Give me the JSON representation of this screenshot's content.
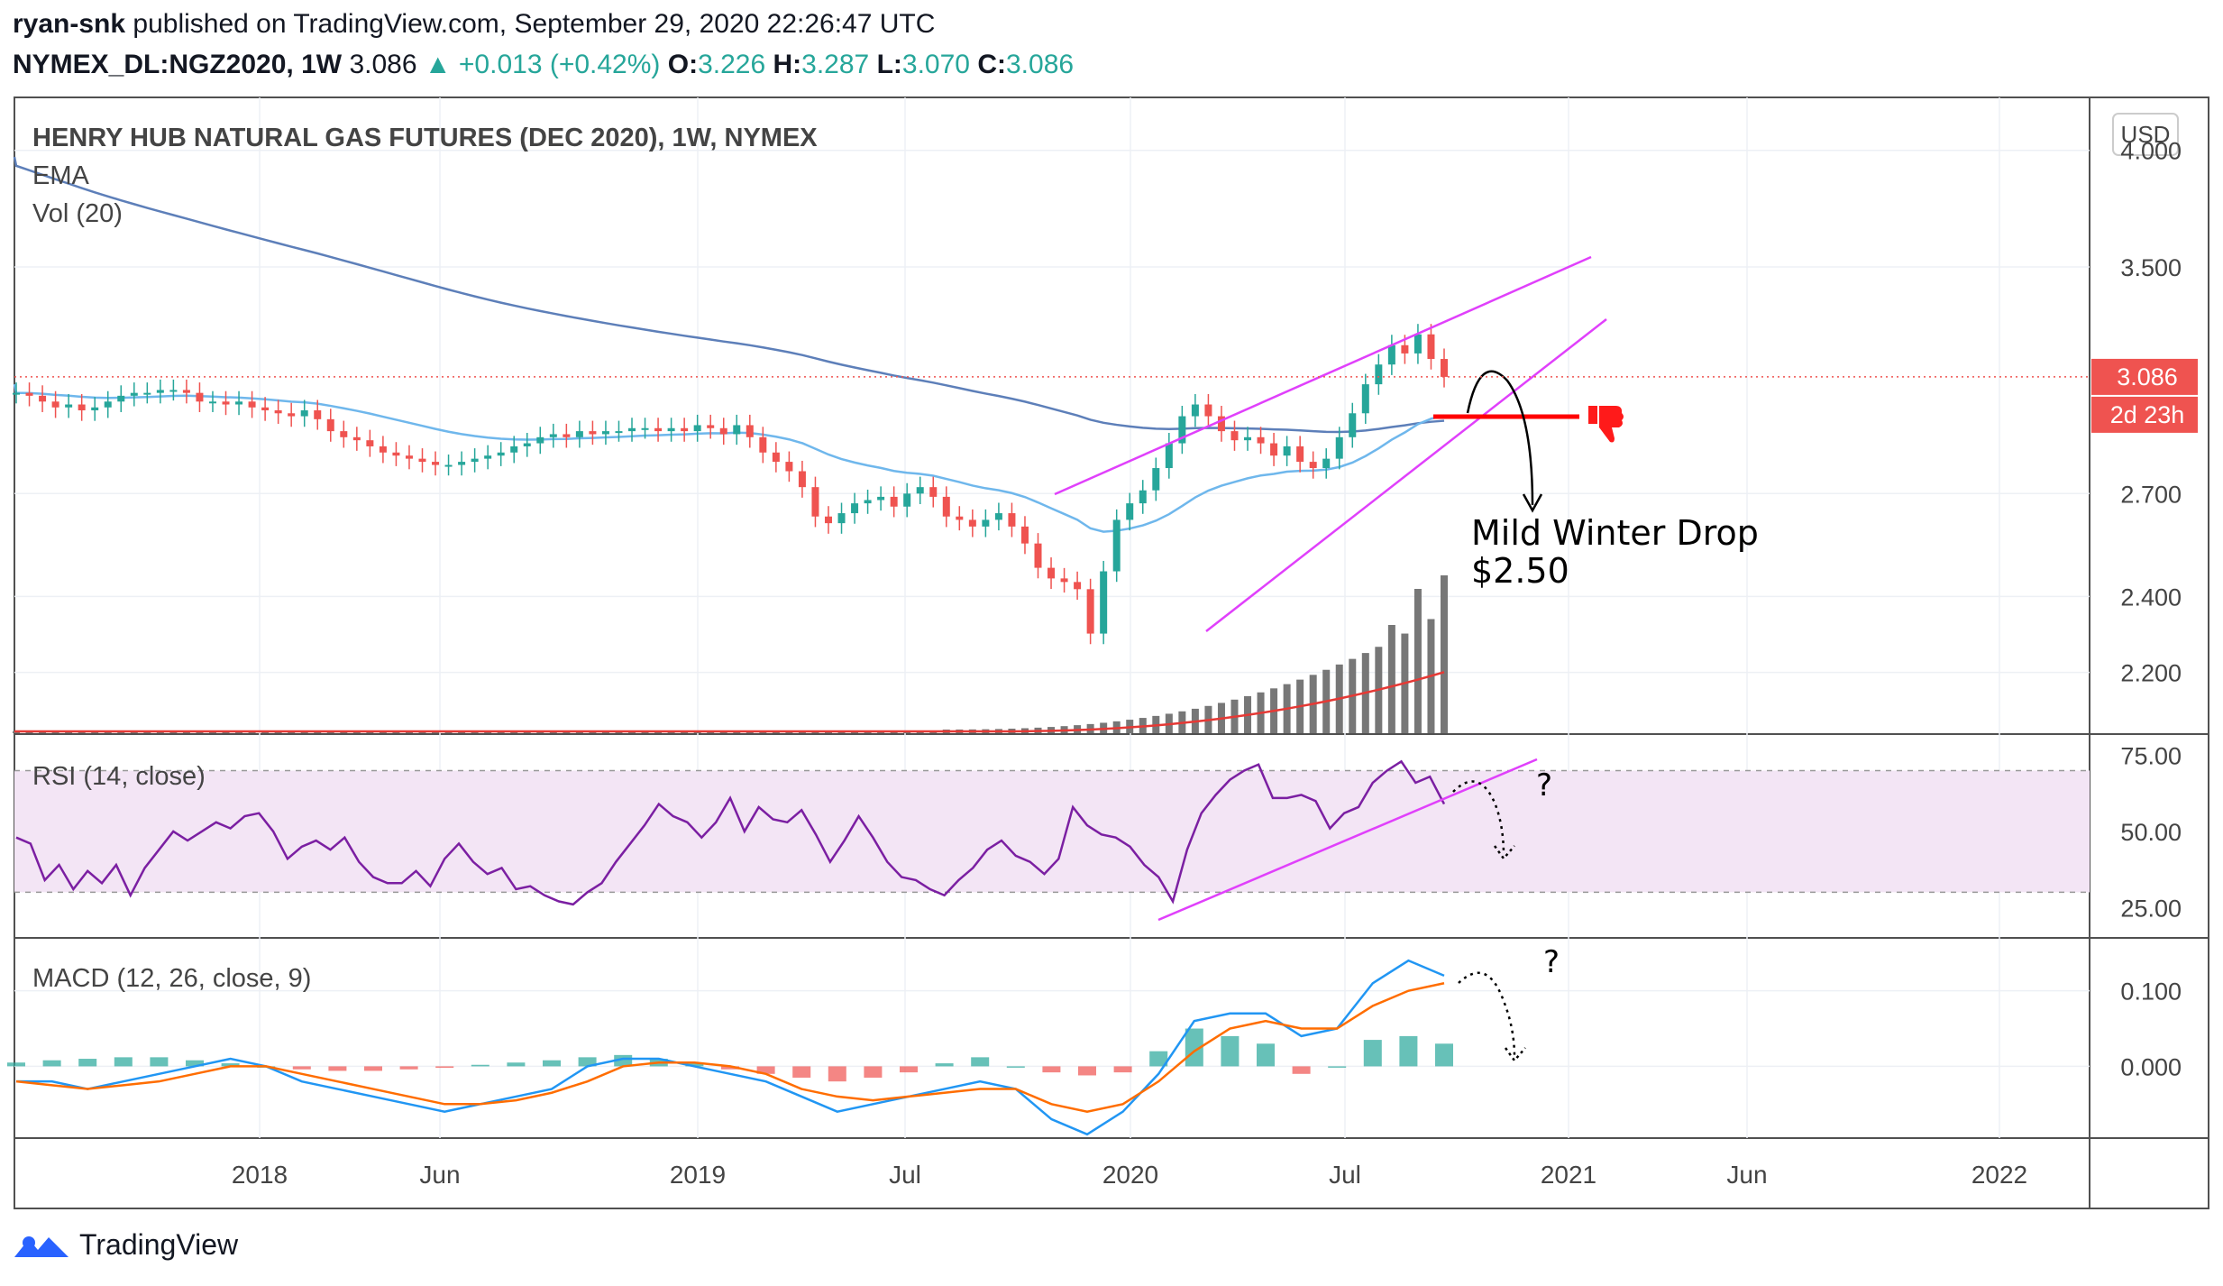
{
  "publisher": {
    "user": "ryan-snk",
    "text": "published on TradingView.com, September 29, 2020 22:26:47 UTC"
  },
  "ticker": {
    "symbol": "NYMEX_DL:NGZ2020, 1W",
    "last": "3.086",
    "change": "+0.013 (+0.42%)",
    "O": "3.226",
    "H": "3.287",
    "L": "3.070",
    "C": "3.086",
    "o_label": "O:",
    "h_label": "H:",
    "l_label": "L:",
    "c_label": "C:"
  },
  "footer": {
    "brand": "TradingView"
  },
  "colors": {
    "up": "#26a69a",
    "down": "#ef5350",
    "ema": "#5d7fb9",
    "ma": "#6fb7ec",
    "channel": "#e040fb",
    "rsi": "#7b1fa2",
    "rsi_band": "#f3e5f5",
    "macd": "#2196f3",
    "signal": "#ff6d00",
    "volume": "#777777",
    "vol_ma": "#e53935",
    "red_line": "#ff0000"
  },
  "chart_data": [
    {
      "type": "candlestick",
      "title": "HENRY HUB NATURAL GAS FUTURES (DEC 2020), 1W, NYMEX",
      "indicators": [
        "EMA",
        "Vol (20)"
      ],
      "currency": "USD",
      "y_ticks": [
        "4.000",
        "3.500",
        "2.700",
        "2.400",
        "2.200"
      ],
      "y_tick_values": [
        4.0,
        3.5,
        2.7,
        2.4,
        2.2
      ],
      "x_ticks": [
        "2018",
        "Jun",
        "2019",
        "Jul",
        "2020",
        "Jul",
        "2021",
        "Jun",
        "2022"
      ],
      "last_price_label": "3.086",
      "countdown_label": "2d 23h",
      "last_price": 3.086,
      "scale": "log",
      "ylim": [
        2.05,
        4.25
      ],
      "close_series": [
        3.03,
        3.02,
        3.0,
        2.98,
        2.99,
        2.97,
        2.98,
        3.0,
        3.02,
        3.03,
        3.03,
        3.04,
        3.04,
        3.03,
        3.0,
        3.0,
        2.99,
        3.0,
        2.98,
        2.97,
        2.96,
        2.95,
        2.97,
        2.94,
        2.9,
        2.88,
        2.87,
        2.85,
        2.83,
        2.82,
        2.81,
        2.8,
        2.79,
        2.79,
        2.8,
        2.81,
        2.82,
        2.83,
        2.85,
        2.86,
        2.88,
        2.89,
        2.88,
        2.9,
        2.89,
        2.9,
        2.9,
        2.91,
        2.91,
        2.9,
        2.91,
        2.9,
        2.92,
        2.91,
        2.89,
        2.92,
        2.88,
        2.83,
        2.8,
        2.77,
        2.72,
        2.63,
        2.61,
        2.64,
        2.67,
        2.68,
        2.69,
        2.66,
        2.7,
        2.72,
        2.69,
        2.63,
        2.62,
        2.6,
        2.62,
        2.64,
        2.6,
        2.55,
        2.48,
        2.45,
        2.44,
        2.42,
        2.3,
        2.47,
        2.62,
        2.67,
        2.71,
        2.78,
        2.86,
        2.95,
        2.99,
        2.95,
        2.9,
        2.87,
        2.88,
        2.86,
        2.82,
        2.85,
        2.8,
        2.78,
        2.81,
        2.88,
        2.96,
        3.06,
        3.13,
        3.2,
        3.17,
        3.24,
        3.15,
        3.086
      ],
      "ema_label": "EMA",
      "volume_label": "Vol (20)"
    },
    {
      "type": "line",
      "title": "RSI (14, close)",
      "y_ticks": [
        "75.00",
        "50.00",
        "25.00"
      ],
      "y_tick_values": [
        75,
        50,
        25
      ],
      "ylim": [
        15,
        82
      ],
      "band": [
        30,
        70
      ],
      "values": [
        48,
        46,
        34,
        39,
        31,
        37,
        33,
        39,
        29,
        38,
        44,
        50,
        47,
        50,
        53,
        51,
        55,
        56,
        50,
        41,
        45,
        47,
        44,
        48,
        40,
        35,
        33,
        33,
        37,
        32,
        41,
        46,
        40,
        36,
        38,
        31,
        32,
        29,
        27,
        26,
        30,
        33,
        40,
        46,
        52,
        59,
        55,
        53,
        48,
        53,
        61,
        50,
        58,
        54,
        53,
        57,
        49,
        40,
        47,
        55,
        48,
        40,
        35,
        34,
        31,
        29,
        34,
        38,
        44,
        47,
        42,
        40,
        36,
        41,
        58,
        52,
        49,
        48,
        45,
        39,
        35,
        27,
        44,
        56,
        62,
        67,
        70,
        72,
        61,
        61,
        62,
        60,
        51,
        56,
        58,
        66,
        70,
        73,
        66,
        68,
        59
      ]
    },
    {
      "type": "line",
      "title": "MACD (12, 26, close, 9)",
      "y_ticks": [
        "0.100",
        "0.000"
      ],
      "y_tick_values": [
        0.1,
        0.0
      ],
      "ylim": [
        -0.095,
        0.17
      ],
      "series": [
        {
          "name": "MACD",
          "values": [
            -0.02,
            -0.02,
            -0.03,
            -0.02,
            -0.01,
            0.0,
            0.01,
            0.0,
            -0.02,
            -0.03,
            -0.04,
            -0.05,
            -0.06,
            -0.05,
            -0.04,
            -0.03,
            0.0,
            0.01,
            0.01,
            0.0,
            -0.01,
            -0.02,
            -0.04,
            -0.06,
            -0.05,
            -0.04,
            -0.03,
            -0.02,
            -0.03,
            -0.07,
            -0.09,
            -0.06,
            -0.01,
            0.06,
            0.07,
            0.07,
            0.04,
            0.05,
            0.11,
            0.14,
            0.12
          ]
        },
        {
          "name": "Signal",
          "values": [
            -0.02,
            -0.025,
            -0.03,
            -0.025,
            -0.02,
            -0.01,
            0.0,
            0.0,
            -0.01,
            -0.02,
            -0.03,
            -0.04,
            -0.05,
            -0.05,
            -0.045,
            -0.035,
            -0.02,
            0.0,
            0.005,
            0.005,
            0.0,
            -0.01,
            -0.03,
            -0.04,
            -0.045,
            -0.04,
            -0.035,
            -0.03,
            -0.03,
            -0.05,
            -0.06,
            -0.05,
            -0.02,
            0.02,
            0.05,
            0.06,
            0.05,
            0.05,
            0.08,
            0.1,
            0.11
          ]
        }
      ],
      "histogram": [
        0.005,
        0.008,
        0.01,
        0.012,
        0.012,
        0.008,
        0.004,
        0.0,
        -0.004,
        -0.006,
        -0.006,
        -0.004,
        -0.002,
        0.002,
        0.005,
        0.008,
        0.012,
        0.015,
        0.01,
        0.005,
        -0.004,
        -0.01,
        -0.015,
        -0.02,
        -0.015,
        -0.008,
        0.004,
        0.012,
        0.0,
        -0.008,
        -0.012,
        -0.008,
        0.02,
        0.05,
        0.04,
        0.03,
        -0.01,
        0.0,
        0.035,
        0.04,
        0.03
      ]
    }
  ],
  "annotations": {
    "drop_text_1": "Mild Winter Drop",
    "drop_text_2": "$2.50",
    "q1": "?",
    "q2": "?"
  }
}
